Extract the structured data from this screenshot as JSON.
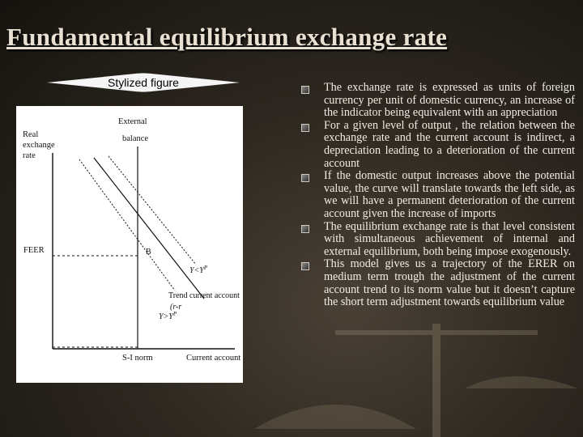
{
  "slide": {
    "title": "Fundamental equilibrium exchange rate",
    "label": "Stylized  figure"
  },
  "figure": {
    "y_axis_label": [
      "Real",
      "exchange",
      "rate"
    ],
    "external_balance": [
      "External",
      "balance"
    ],
    "feer_label": "FEER",
    "point_label": "B",
    "y_gt_label": "Y<Y",
    "y_gt_sup": "P",
    "y_lt_label": "Y>Y",
    "y_lt_sup": "P",
    "trend_label": "Trend current account",
    "trend_formula": "(r-r",
    "x_norm_label": "S-I norm",
    "x_axis_label": "Current account"
  },
  "bullets": [
    "The exchange rate is expressed as units of foreign currency per unit of domestic currency, an increase of the indicator being equivalent with an appreciation",
    "For a given level of output , the relation between the exchange rate and the current account is indirect, a depreciation leading to a deterioration of the current account",
    "If the domestic output increases above the potential value, the curve will translate towards the left side, as we will have a permanent deterioration of the current account given the increase of imports",
    "The equilibrium exchange rate is that level consistent with simultaneous achievement of internal and external equilibrium, both being impose exogenously.",
    "This model gives us a trajectory of the ERER on medium term trough the adjustment of the current account trend to its norm value but it doesn’t capture the short term adjustment towards equilibrium value"
  ]
}
